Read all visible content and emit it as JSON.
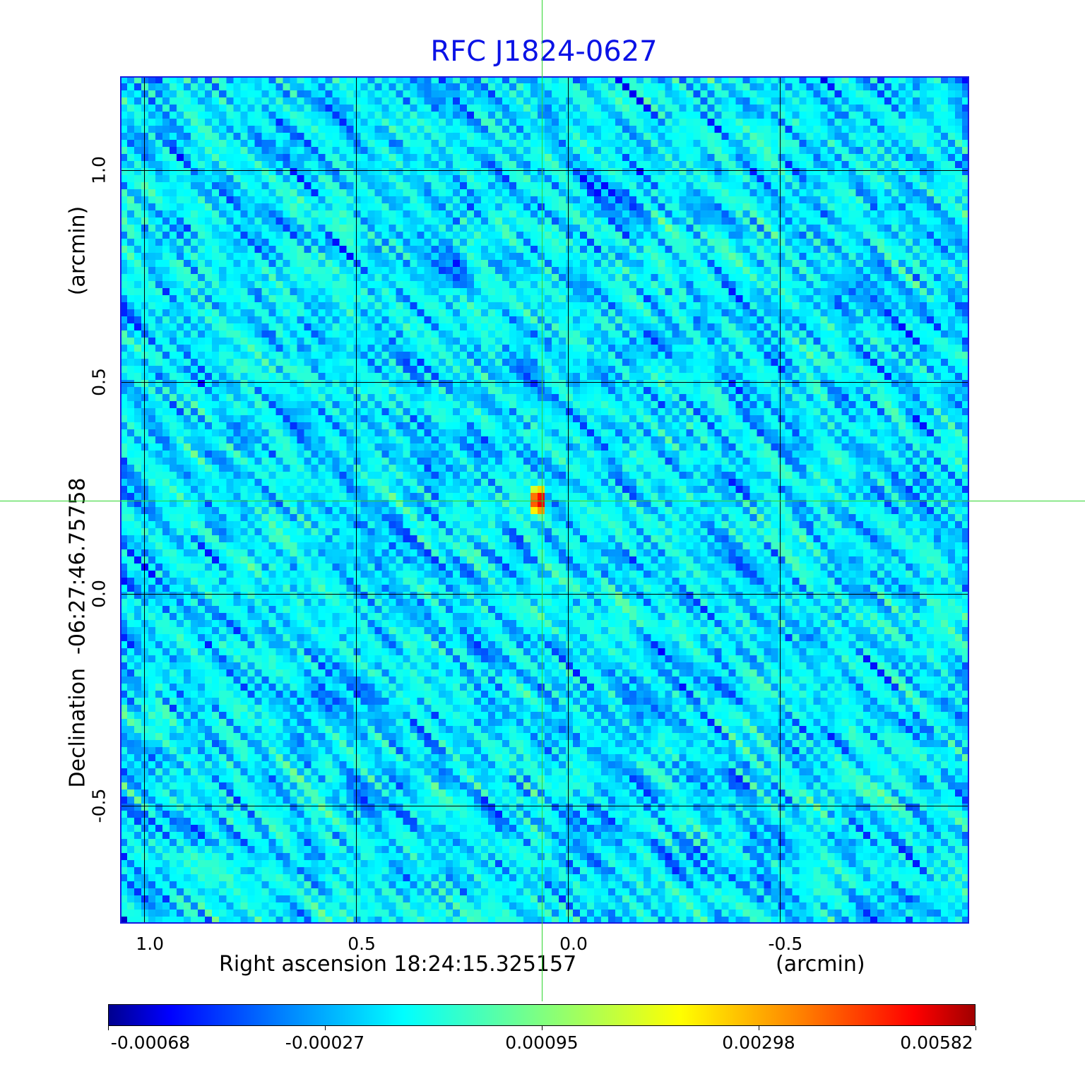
{
  "chart_data": {
    "type": "heatmap",
    "title": "RFC J1824-0627",
    "xlabel": "Right ascension  18:24:15.325157",
    "xunit": "(arcmin)",
    "ylabel": "Declination  -06:27:46.75758",
    "yunit": "(arcmin)",
    "xlim": [
      1.057,
      -0.947
    ],
    "ylim": [
      -0.778,
      1.222
    ],
    "xticks": [
      "1.0",
      "0.5",
      "0.0",
      "-0.5"
    ],
    "xtick_values": [
      1.0,
      0.5,
      0.0,
      -0.5
    ],
    "yticks": [
      "1.0",
      "0.5",
      "0.0",
      "-0.5"
    ],
    "ytick_values": [
      1.0,
      0.5,
      0.0,
      -0.5
    ],
    "grid": true,
    "colormap": "jet",
    "colorbar_ticks": [
      "-0.00068",
      "-0.00027",
      "0.00095",
      "0.00298",
      "0.00582"
    ],
    "colorbar_range": [
      -0.00068,
      0.00582
    ],
    "source": {
      "ra_offset_arcmin": 0.07,
      "dec_offset_arcmin": 0.22,
      "peak": 0.00582
    },
    "crosshair": {
      "ra_offset_arcmin": 0.062,
      "dec_offset_arcmin": 0.22
    },
    "grid_cells": 120
  }
}
